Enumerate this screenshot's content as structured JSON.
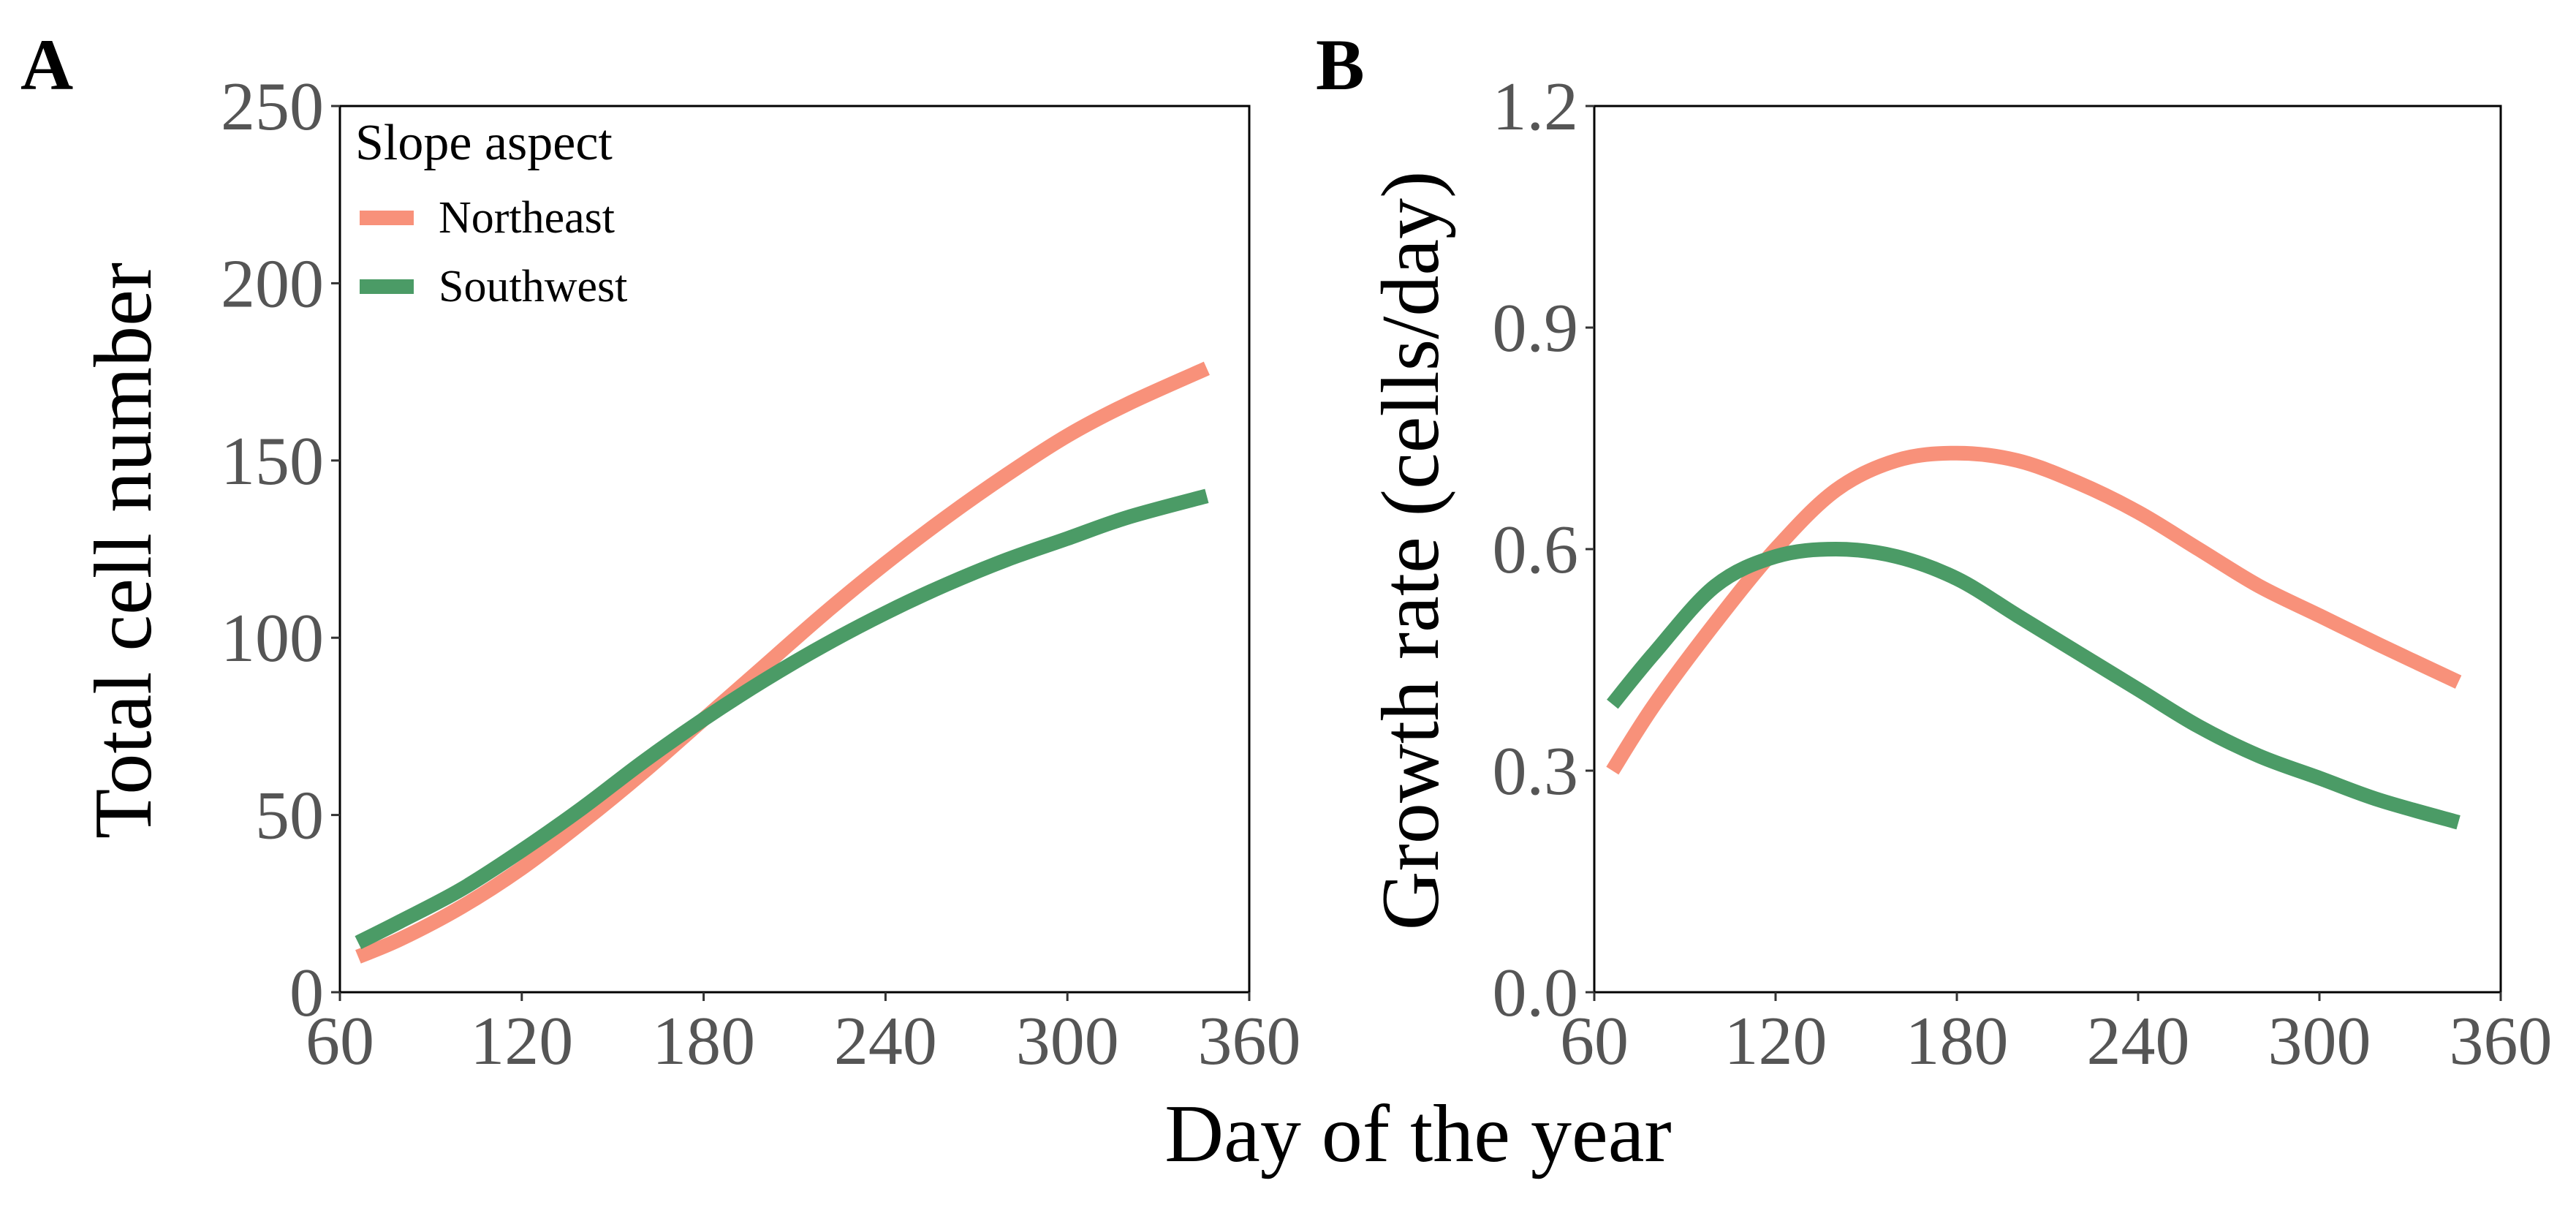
{
  "shared": {
    "xlabel": "Day of the year",
    "legend_title": "Slope aspect",
    "series_names": [
      "Northeast",
      "Southwest"
    ],
    "colors": {
      "Northeast": "#F8917A",
      "Southwest": "#4B9B66"
    }
  },
  "chart_data": [
    {
      "panel_label": "A",
      "type": "line",
      "title": "",
      "xlabel": "Day of the year",
      "ylabel": "Total cell number",
      "xlim": [
        60,
        360
      ],
      "ylim": [
        0,
        250
      ],
      "xticks": [
        60,
        120,
        180,
        240,
        300,
        360
      ],
      "yticks": [
        0,
        50,
        100,
        150,
        200,
        250
      ],
      "xtick_labels": [
        "60",
        "120",
        "180",
        "240",
        "300",
        "360"
      ],
      "ytick_labels": [
        "0",
        "50",
        "100",
        "150",
        "200",
        "250"
      ],
      "legend": {
        "title": "Slope aspect",
        "position": "top-left",
        "entries": [
          "Northeast",
          "Southwest"
        ]
      },
      "series": [
        {
          "name": "Northeast",
          "color": "#F8917A",
          "x": [
            66,
            80,
            100,
            120,
            140,
            160,
            180,
            200,
            220,
            240,
            260,
            280,
            300,
            320,
            346
          ],
          "y": [
            10,
            15,
            24,
            35,
            48,
            62,
            77,
            92,
            107,
            121,
            134,
            146,
            157,
            166,
            176
          ]
        },
        {
          "name": "Southwest",
          "color": "#4B9B66",
          "x": [
            66,
            80,
            100,
            120,
            140,
            160,
            180,
            200,
            220,
            240,
            260,
            280,
            300,
            320,
            346
          ],
          "y": [
            14,
            20,
            29,
            40,
            52,
            65,
            77,
            88,
            98,
            107,
            115,
            122,
            128,
            134,
            140
          ]
        }
      ]
    },
    {
      "panel_label": "B",
      "type": "line",
      "title": "",
      "xlabel": "Day of the year",
      "ylabel": "Growth rate (cells/day)",
      "xlim": [
        60,
        360
      ],
      "ylim": [
        0.0,
        1.2
      ],
      "xticks": [
        60,
        120,
        180,
        240,
        300,
        360
      ],
      "yticks": [
        0.0,
        0.3,
        0.6,
        0.9,
        1.2
      ],
      "xtick_labels": [
        "60",
        "120",
        "180",
        "240",
        "300",
        "360"
      ],
      "ytick_labels": [
        "0.0",
        "0.3",
        "0.6",
        "0.9",
        "1.2"
      ],
      "series": [
        {
          "name": "Northeast",
          "color": "#F8917A",
          "x": [
            66,
            80,
            100,
            120,
            140,
            160,
            180,
            200,
            220,
            240,
            260,
            280,
            300,
            320,
            346
          ],
          "y": [
            0.3,
            0.39,
            0.5,
            0.6,
            0.68,
            0.72,
            0.73,
            0.72,
            0.69,
            0.65,
            0.6,
            0.55,
            0.51,
            0.47,
            0.42
          ]
        },
        {
          "name": "Southwest",
          "color": "#4B9B66",
          "x": [
            66,
            80,
            100,
            120,
            140,
            160,
            180,
            200,
            220,
            240,
            260,
            280,
            300,
            320,
            346
          ],
          "y": [
            0.39,
            0.46,
            0.55,
            0.59,
            0.6,
            0.59,
            0.56,
            0.51,
            0.46,
            0.41,
            0.36,
            0.32,
            0.29,
            0.26,
            0.23
          ]
        }
      ]
    }
  ]
}
